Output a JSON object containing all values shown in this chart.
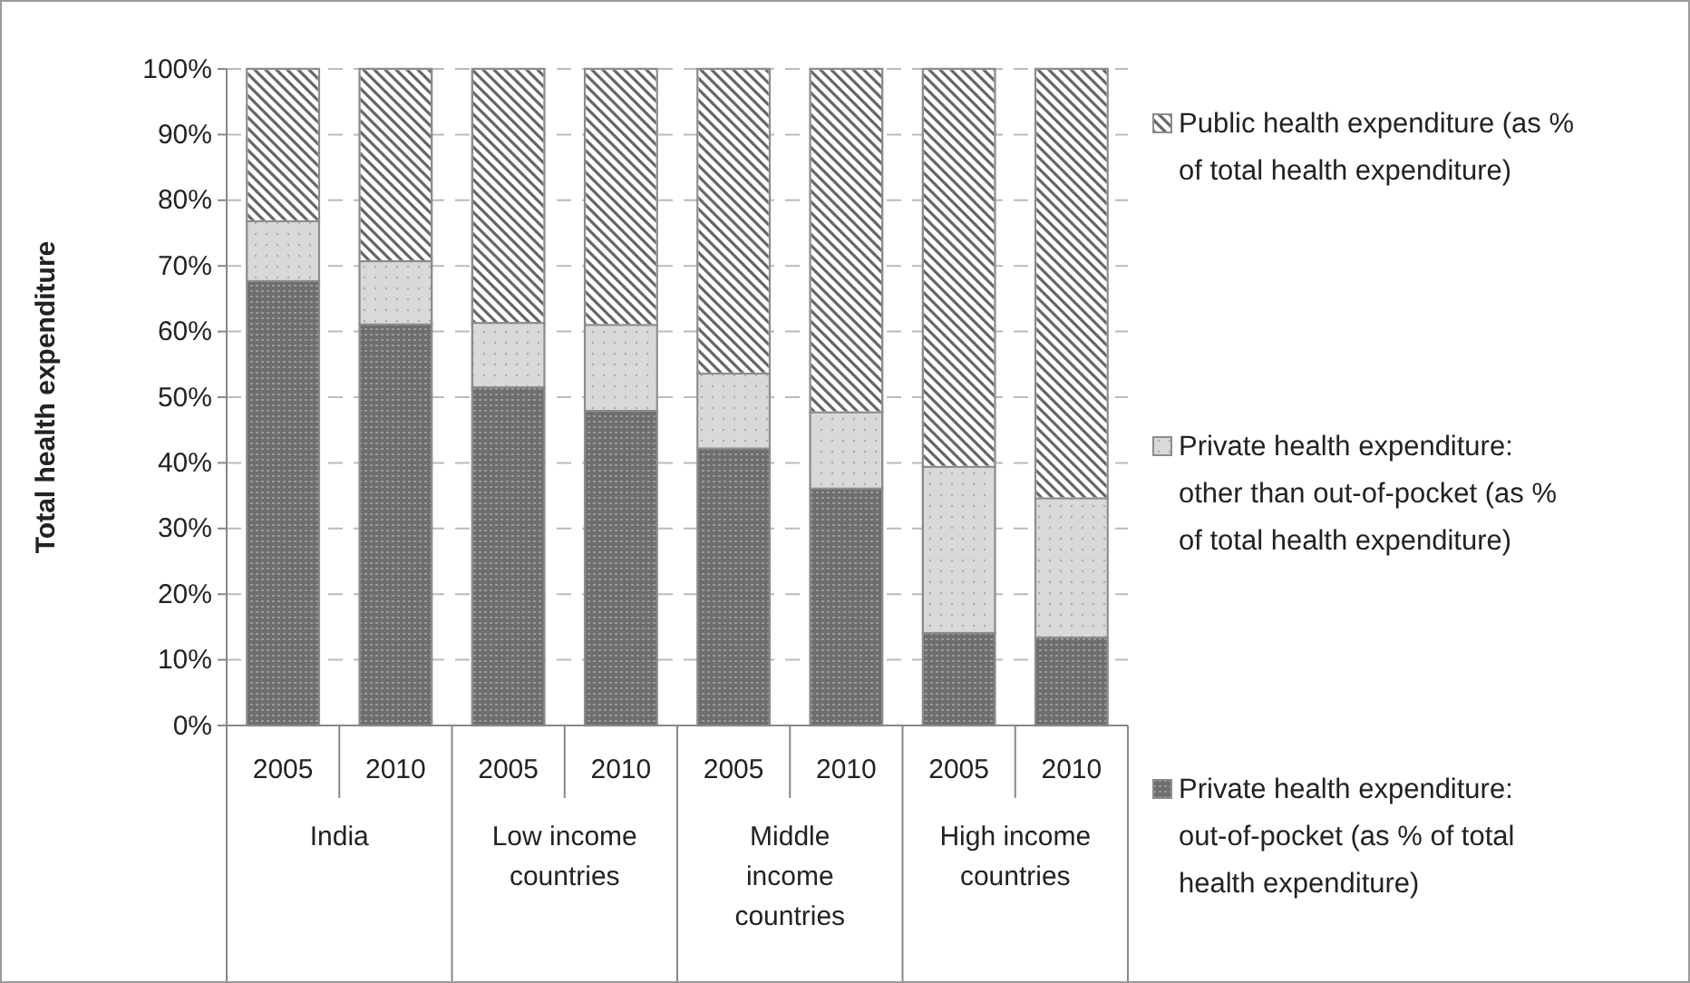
{
  "chart_data": {
    "type": "bar",
    "stacked": true,
    "ylabel": "Total health expenditure",
    "categories": [
      "2005",
      "2010",
      "2005",
      "2010",
      "2005",
      "2010",
      "2005",
      "2010"
    ],
    "annotations": [
      "India",
      "Low income countries",
      "Middle income countries",
      "High income countries"
    ],
    "series": [
      {
        "name": "Private health expenditure: out-of-pocket (as % of total health expenditure)",
        "color": "#6e6e6e",
        "values": [
          67.7,
          61.1,
          51.5,
          47.9,
          42.2,
          36.1,
          14.1,
          13.4
        ]
      },
      {
        "name": "Private health expenditure: other than out-of-pocket (as % of total health expenditure)",
        "color": "#d9d9d9",
        "values": [
          9.1,
          9.6,
          9.8,
          13.1,
          11.4,
          11.6,
          25.3,
          21.2
        ]
      },
      {
        "name": "Public health expenditure (as % of total health expenditure)",
        "color": "#ffffff",
        "values": [
          23.2,
          29.3,
          38.7,
          39.0,
          46.4,
          52.3,
          60.6,
          65.4
        ]
      }
    ],
    "ylim": [
      0,
      100
    ],
    "yticks": [
      {
        "value": 0,
        "label": "0%"
      },
      {
        "value": 10,
        "label": "10%"
      },
      {
        "value": 20,
        "label": "20%"
      },
      {
        "value": 30,
        "label": "30%"
      },
      {
        "value": 40,
        "label": "40%"
      },
      {
        "value": 50,
        "label": "50%"
      },
      {
        "value": 60,
        "label": "60%"
      },
      {
        "value": 70,
        "label": "70%"
      },
      {
        "value": 80,
        "label": "80%"
      },
      {
        "value": 90,
        "label": "90%"
      },
      {
        "value": 100,
        "label": "100%"
      }
    ],
    "grid": "y",
    "legend": "right"
  }
}
